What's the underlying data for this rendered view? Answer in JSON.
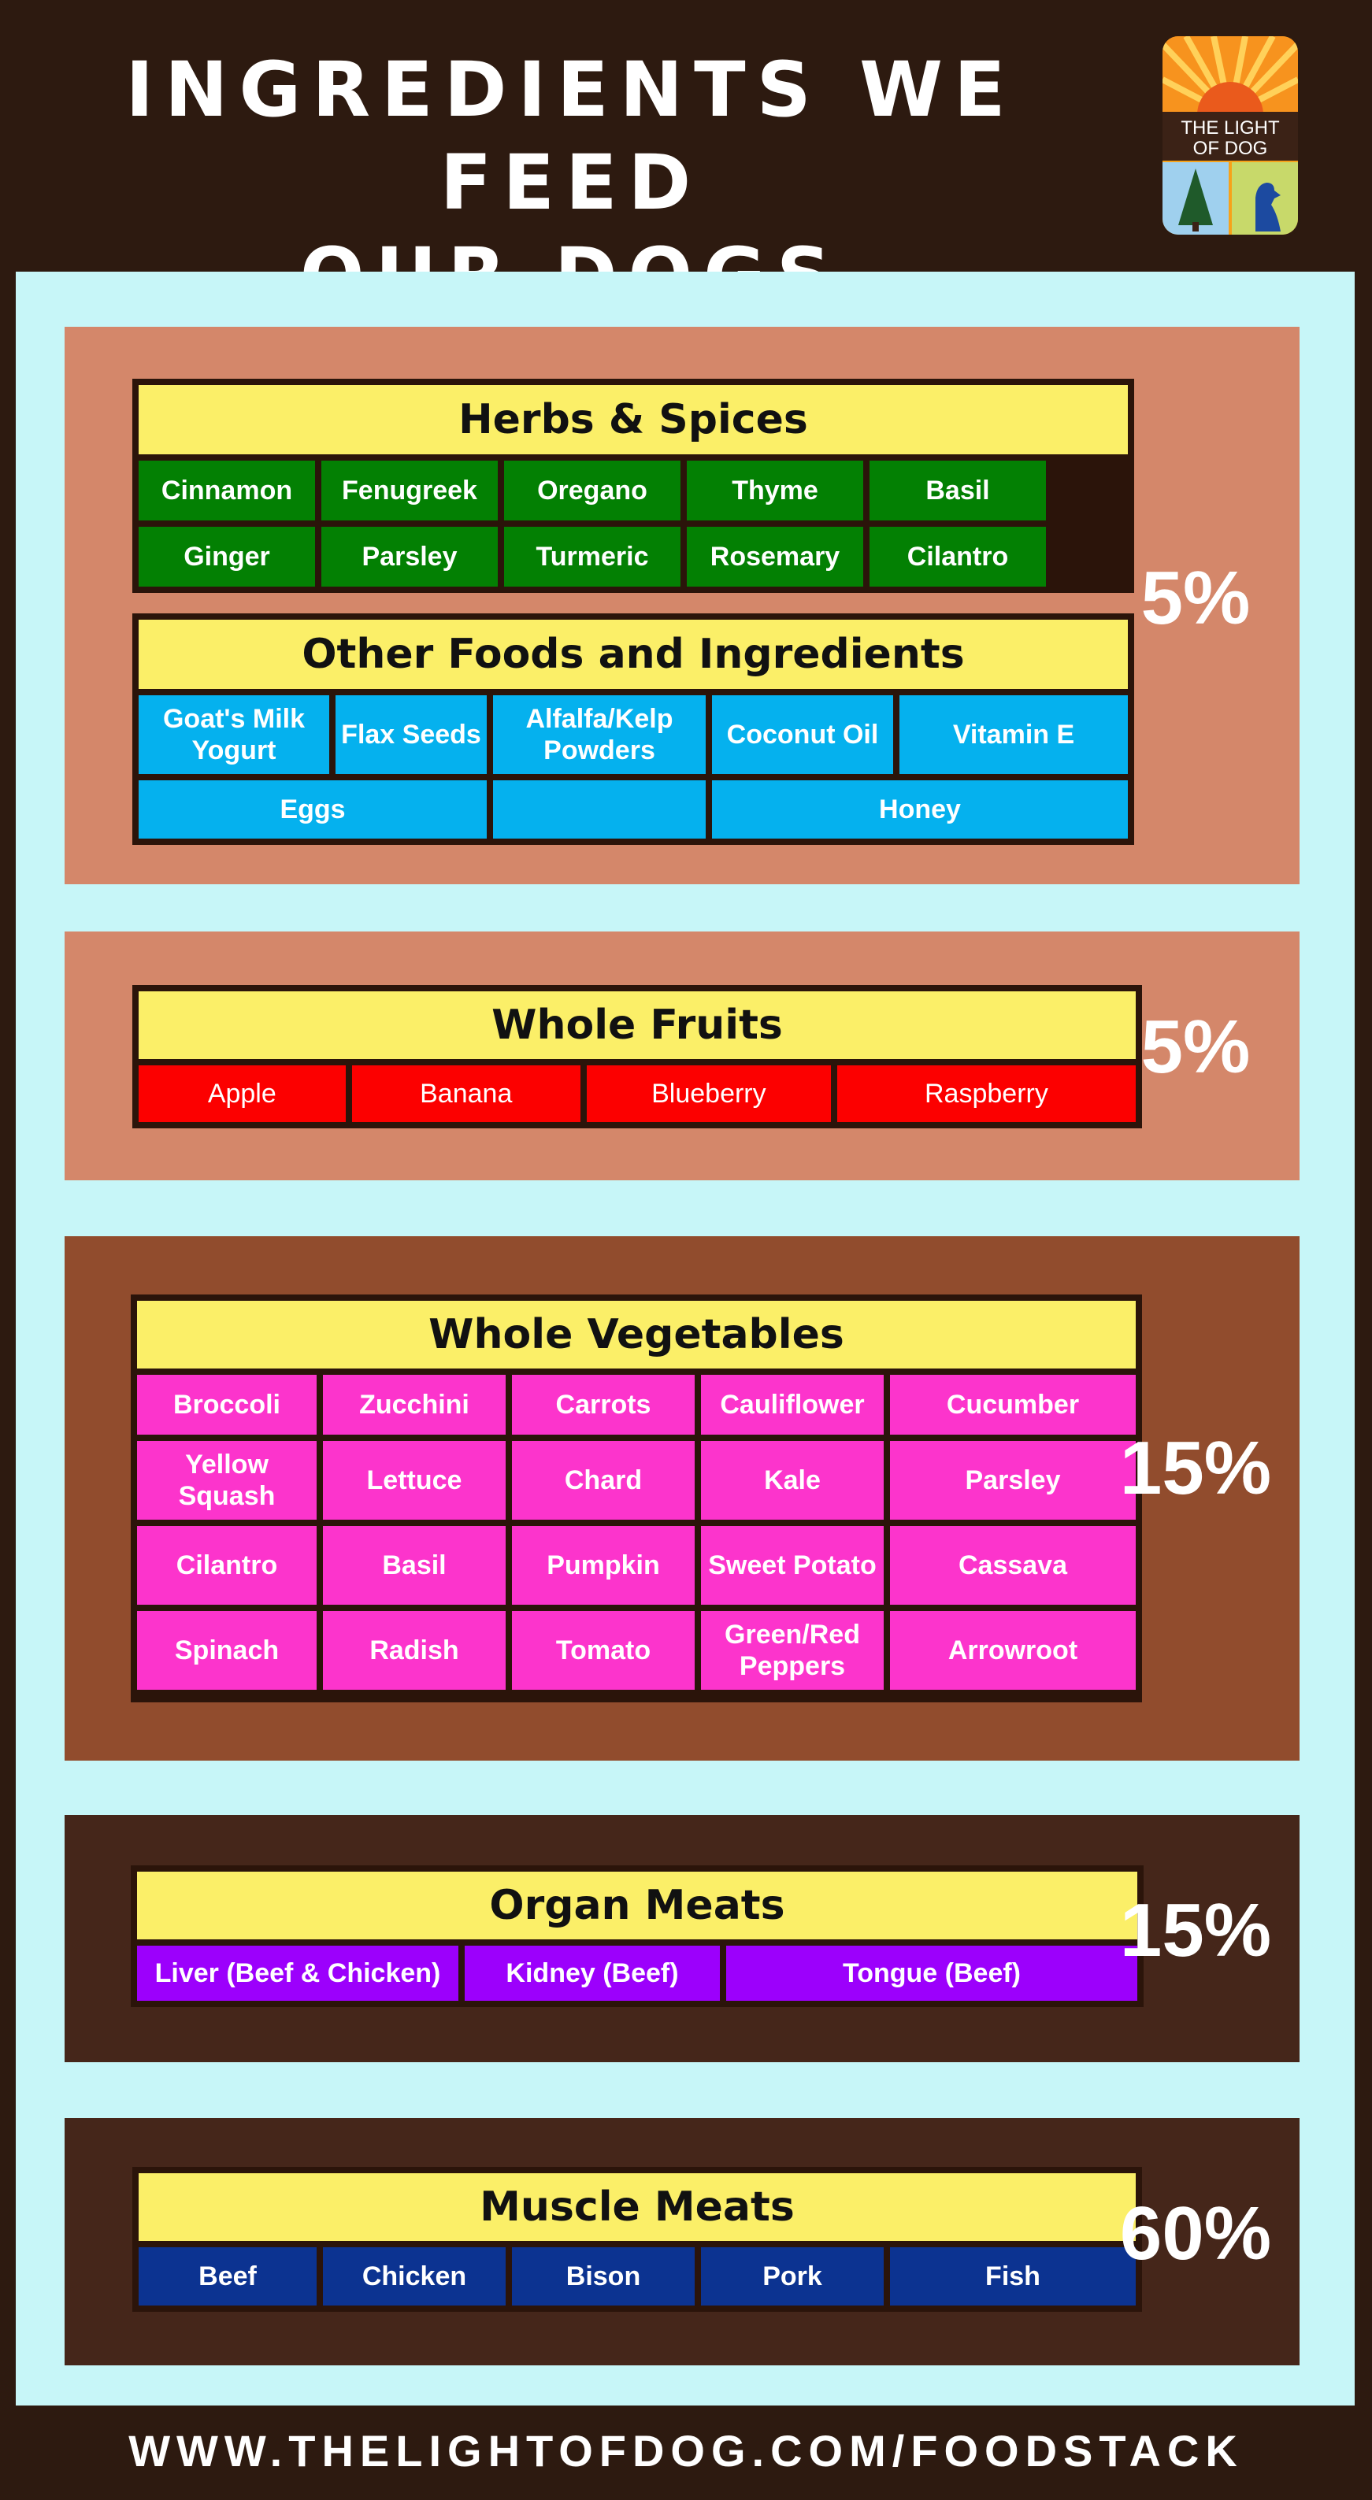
{
  "title_line1": "INGREDIENTS WE FEED",
  "title_line2": "OUR DOGS",
  "logo": {
    "text_line1": "THE LIGHT",
    "text_line2": "OF DOG",
    "icons": [
      "sunrise-icon",
      "pine-tree-icon",
      "dog-icon"
    ]
  },
  "colors": {
    "background": "#2d1a10",
    "panel": "#c7f6f8",
    "band_light": "#d4876a",
    "band_mid": "#914c2d",
    "band_dark": "#45261a",
    "header": "#fbef68",
    "herbs": "#038003",
    "other": "#05b1ee",
    "fruits": "#fc0000",
    "vegetables": "#fc34cc",
    "organ": "#9c00fc",
    "muscle": "#0c3391"
  },
  "sections": {
    "herbs": {
      "title": "Herbs & Spices",
      "row1": [
        "Cinnamon",
        "Fenugreek",
        "Oregano",
        "Thyme",
        "Basil"
      ],
      "row2": [
        "Ginger",
        "Parsley",
        "Turmeric",
        "Rosemary",
        "Cilantro"
      ]
    },
    "other": {
      "title": "Other Foods and Ingredients",
      "row1": [
        "Goat's Milk Yogurt",
        "Flax Seeds",
        "Alfalfa/Kelp Powders",
        "Coconut Oil",
        "Vitamin E"
      ],
      "row2": [
        "Eggs",
        "",
        "Honey"
      ]
    },
    "fruits": {
      "title": "Whole Fruits",
      "items": [
        "Apple",
        "Banana",
        "Blueberry",
        "Raspberry"
      ]
    },
    "vegetables": {
      "title": "Whole Vegetables",
      "row1": [
        "Broccoli",
        "Zucchini",
        "Carrots",
        "Cauliflower",
        "Cucumber"
      ],
      "row2": [
        "Yellow Squash",
        "Lettuce",
        "Chard",
        "Kale",
        "Parsley"
      ],
      "row3": [
        "Cilantro",
        "Basil",
        "Pumpkin",
        "Sweet Potato",
        "Cassava"
      ],
      "row4": [
        "Spinach",
        "Radish",
        "Tomato",
        "Green/Red Peppers",
        "Arrowroot"
      ]
    },
    "organ": {
      "title": "Organ Meats",
      "items": [
        "Liver (Beef & Chicken)",
        "Kidney (Beef)",
        "Tongue (Beef)"
      ]
    },
    "muscle": {
      "title": "Muscle Meats",
      "items": [
        "Beef",
        "Chicken",
        "Bison",
        "Pork",
        "Fish"
      ]
    }
  },
  "percents": {
    "herbs_other": "5%",
    "fruits": "5%",
    "vegetables": "15%",
    "organ": "15%",
    "muscle": "60%"
  },
  "footer": "WWW.THELIGHTOFDOG.COM/FOODSTACK"
}
